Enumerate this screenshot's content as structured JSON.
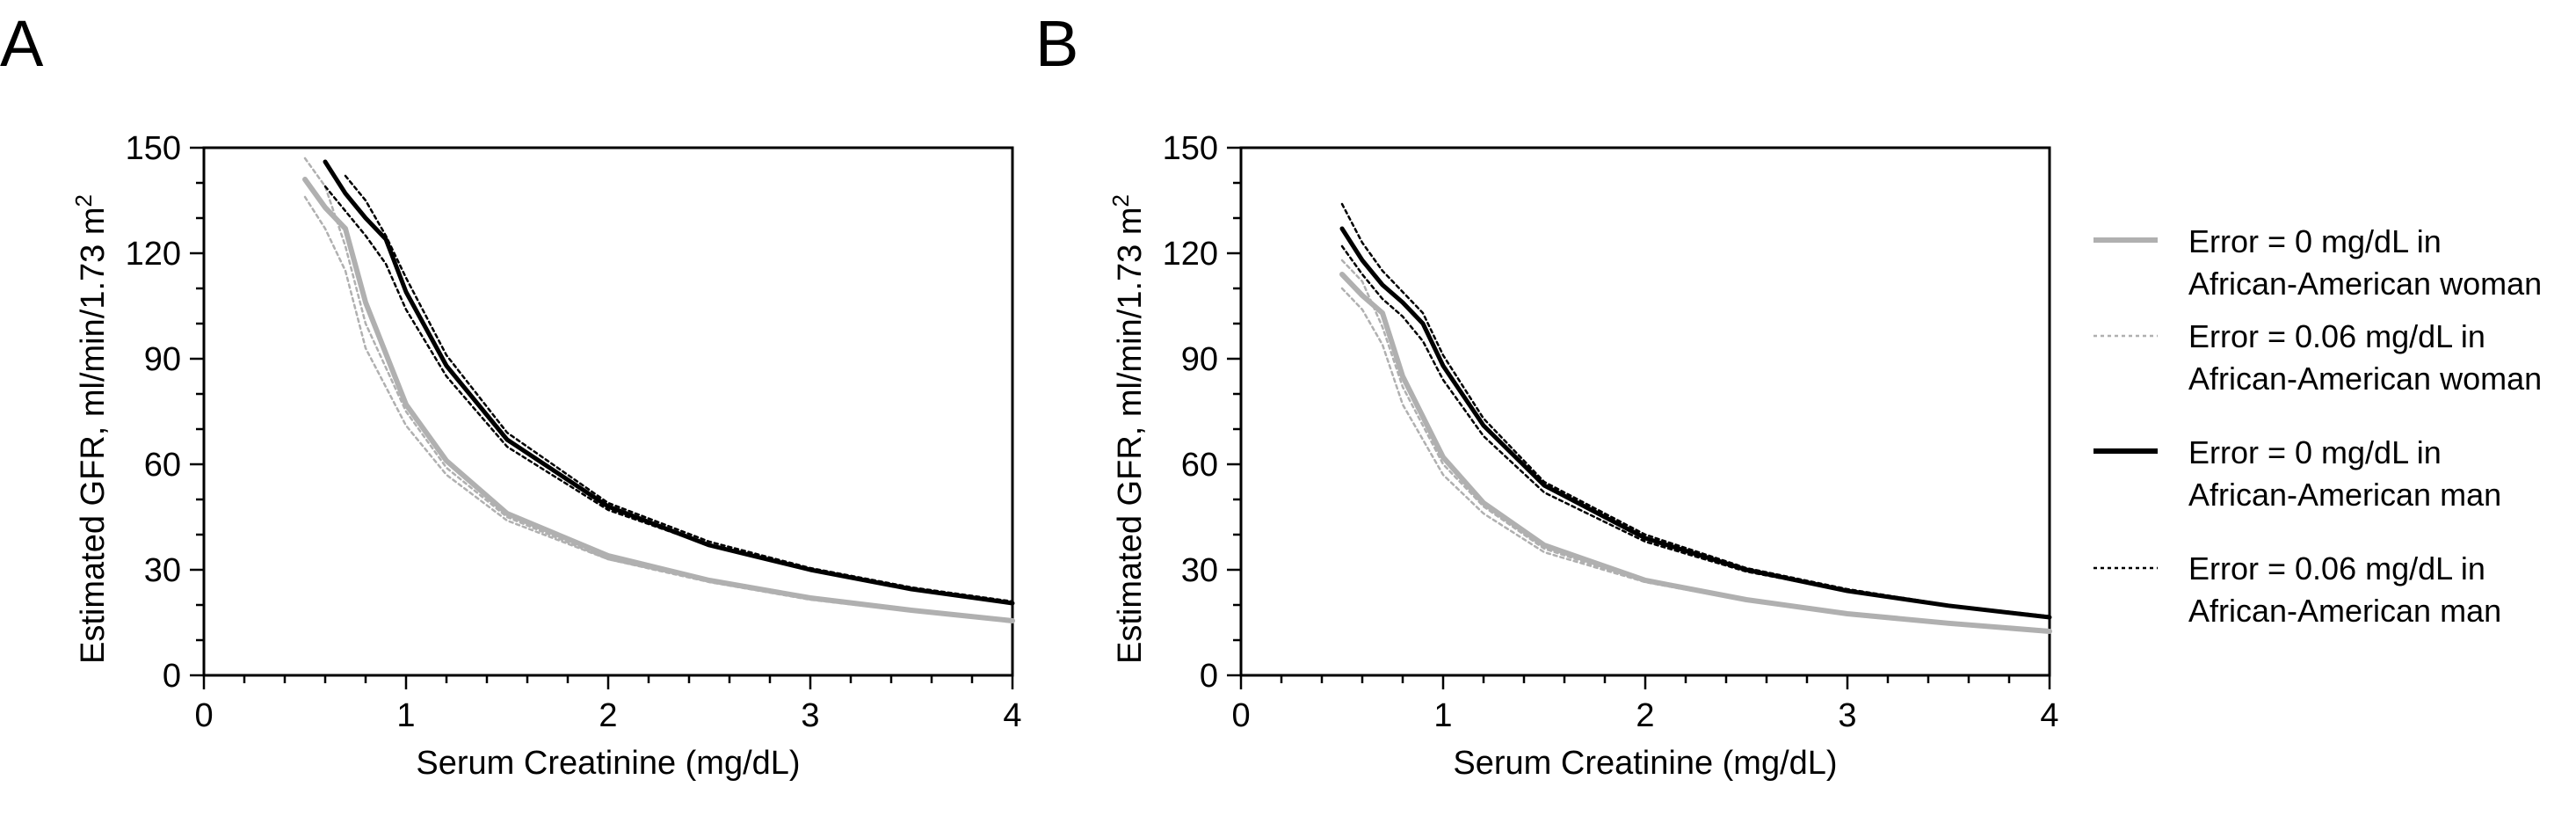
{
  "colors": {
    "woman": "#b0b0b0",
    "man": "#000000"
  },
  "legend": [
    {
      "series_id": "w0",
      "line1": "Error = 0 mg/dL in",
      "line2": "African-American woman",
      "style": "solid-thick-gray"
    },
    {
      "series_id": "w06",
      "line1": "Error = 0.06 mg/dL in",
      "line2": "African-American woman",
      "style": "dotted-thin-gray"
    },
    {
      "series_id": "m0",
      "line1": "Error = 0 mg/dL in",
      "line2": "African-American man",
      "style": "solid-thick-black"
    },
    {
      "series_id": "m06",
      "line1": "Error = 0.06 mg/dL in",
      "line2": "African-American man",
      "style": "dotted-thin-black"
    }
  ],
  "chart_data": [
    {
      "panel": "A",
      "type": "line",
      "xlabel": "Serum Creatinine (mg/dL)",
      "ylabel": "Estimated  GFR, ml/min/1.73 m",
      "ylabel_superscript": "2",
      "xlim": [
        0,
        4
      ],
      "ylim": [
        0,
        150
      ],
      "xticks": [
        0,
        1,
        2,
        3,
        4
      ],
      "yticks": [
        0,
        30,
        60,
        90,
        120,
        150
      ],
      "grid": false,
      "series": [
        {
          "id": "w0",
          "x": [
            0.5,
            0.6,
            0.7,
            0.8,
            1.0,
            1.2,
            1.5,
            2.0,
            2.5,
            3.0,
            3.5,
            4.0
          ],
          "y": [
            141,
            133,
            127,
            106,
            77,
            61,
            46,
            34,
            27,
            22,
            18.5,
            15.5
          ]
        },
        {
          "id": "w06a",
          "x": [
            0.5,
            0.6,
            0.7,
            0.8,
            1.0,
            1.2,
            1.5,
            2.0,
            2.5,
            3.0,
            3.5,
            4.0
          ],
          "y": [
            147,
            139,
            122,
            100,
            75,
            59,
            45,
            33,
            26.5,
            21.5,
            18.2,
            15.3
          ]
        },
        {
          "id": "w06b",
          "x": [
            0.5,
            0.6,
            0.7,
            0.8,
            1.0,
            1.2,
            1.5,
            2.0,
            2.5,
            3.0,
            3.5,
            4.0
          ],
          "y": [
            136,
            127,
            115,
            93,
            71,
            57,
            44,
            33,
            26.8,
            22,
            18.6,
            15.6
          ]
        },
        {
          "id": "m0",
          "x": [
            0.6,
            0.7,
            0.8,
            0.9,
            1.0,
            1.2,
            1.5,
            2.0,
            2.5,
            3.0,
            3.5,
            4.0
          ],
          "y": [
            146,
            137,
            130,
            124,
            109,
            88,
            67,
            48,
            37,
            30,
            24.5,
            20.5
          ]
        },
        {
          "id": "m06a",
          "x": [
            0.7,
            0.8,
            0.9,
            1.0,
            1.2,
            1.5,
            2.0,
            2.5,
            3.0,
            3.5,
            4.0
          ],
          "y": [
            142,
            135,
            125,
            113,
            91,
            69,
            49,
            38,
            30.5,
            25,
            21
          ]
        },
        {
          "id": "m06b",
          "x": [
            0.6,
            0.7,
            0.8,
            0.9,
            1.0,
            1.2,
            1.5,
            2.0,
            2.5,
            3.0,
            3.5,
            4.0
          ],
          "y": [
            139,
            132,
            125,
            117,
            104,
            85,
            65,
            47,
            37,
            30,
            24.8,
            20.8
          ]
        }
      ]
    },
    {
      "panel": "B",
      "type": "line",
      "xlabel": "Serum Creatinine (mg/dL)",
      "ylabel": "Estimated  GFR, ml/min/1.73 m",
      "ylabel_superscript": "2",
      "xlim": [
        0,
        4
      ],
      "ylim": [
        0,
        150
      ],
      "xticks": [
        0,
        1,
        2,
        3,
        4
      ],
      "yticks": [
        0,
        30,
        60,
        90,
        120,
        150
      ],
      "grid": false,
      "series": [
        {
          "id": "w0",
          "x": [
            0.5,
            0.6,
            0.7,
            0.8,
            1.0,
            1.2,
            1.5,
            2.0,
            2.5,
            3.0,
            3.5,
            4.0
          ],
          "y": [
            114,
            108,
            103,
            85,
            62,
            49,
            37,
            27,
            21.5,
            17.5,
            14.8,
            12.5
          ]
        },
        {
          "id": "w06a",
          "x": [
            0.5,
            0.6,
            0.7,
            0.8,
            1.0,
            1.2,
            1.5,
            2.0,
            2.5,
            3.0,
            3.5,
            4.0
          ],
          "y": [
            118,
            112,
            99,
            82,
            60,
            48,
            36,
            26.5,
            21.2,
            17.3,
            14.6,
            12.4
          ]
        },
        {
          "id": "w06b",
          "x": [
            0.5,
            0.6,
            0.7,
            0.8,
            1.0,
            1.2,
            1.5,
            2.0,
            2.5,
            3.0,
            3.5,
            4.0
          ],
          "y": [
            110,
            104,
            94,
            77,
            57,
            46,
            35,
            26.5,
            21.5,
            17.6,
            14.9,
            12.6
          ]
        },
        {
          "id": "m0",
          "x": [
            0.5,
            0.6,
            0.7,
            0.8,
            0.9,
            1.0,
            1.2,
            1.5,
            2.0,
            2.5,
            3.0,
            3.5,
            4.0
          ],
          "y": [
            127,
            118,
            111,
            106,
            100,
            88,
            71,
            54,
            39,
            30,
            24,
            19.8,
            16.5
          ]
        },
        {
          "id": "m06a",
          "x": [
            0.5,
            0.6,
            0.7,
            0.8,
            0.9,
            1.0,
            1.2,
            1.5,
            2.0,
            2.5,
            3.0,
            3.5,
            4.0
          ],
          "y": [
            134,
            123,
            115,
            109,
            103,
            91,
            73,
            55,
            40,
            30.5,
            24.5,
            20,
            16.8
          ]
        },
        {
          "id": "m06b",
          "x": [
            0.5,
            0.6,
            0.7,
            0.8,
            0.9,
            1.0,
            1.2,
            1.5,
            2.0,
            2.5,
            3.0,
            3.5,
            4.0
          ],
          "y": [
            122,
            114,
            107,
            102,
            95,
            84,
            68,
            52,
            38,
            29.5,
            24,
            19.7,
            16.4
          ]
        }
      ]
    }
  ]
}
